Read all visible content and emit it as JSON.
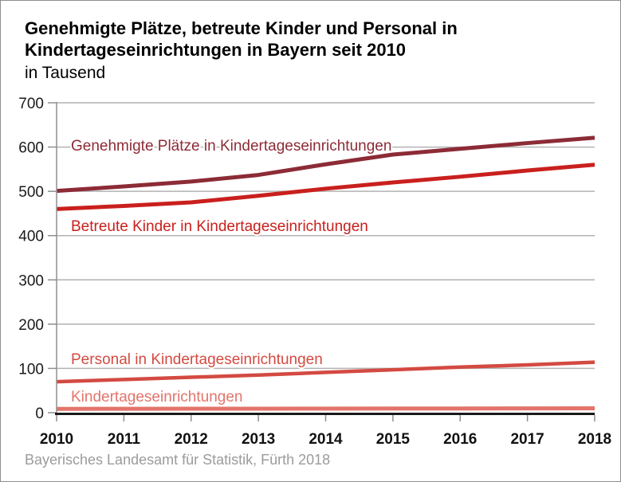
{
  "header": {
    "title_line1": "Genehmigte Plätze, betreute Kinder und Personal in",
    "title_line2": "Kindertageseinrichtungen in Bayern seit 2010",
    "subtitle": "in Tausend"
  },
  "footer": {
    "source": "Bayerisches Landesamt für Statistik, Fürth 2018"
  },
  "chart_data": {
    "type": "line",
    "title": "Genehmigte Plätze, betreute Kinder und Personal in Kindertageseinrichtungen in Bayern seit 2010",
    "subtitle": "in Tausend",
    "xlabel": "",
    "ylabel": "in Tausend",
    "x": [
      2010,
      2011,
      2012,
      2013,
      2014,
      2015,
      2016,
      2017,
      2018
    ],
    "ylim": [
      0,
      700
    ],
    "yticks": [
      0,
      100,
      200,
      300,
      400,
      500,
      600,
      700
    ],
    "grid": true,
    "legend_position": "inline-labels",
    "grid_color": "#b2b2b2",
    "x_axis_color": "#1a1a1a",
    "y_axis_color": "#8f8f8f",
    "series": [
      {
        "key": "genehmigte-plaetze",
        "name": "Genehmigte Plätze in Kindertageseinrichtungen",
        "color": "#8C2B36",
        "values": [
          501,
          511,
          522,
          537,
          561,
          583,
          596,
          609,
          621
        ]
      },
      {
        "key": "betreute-kinder",
        "name": "Betreute Kinder in Kindertageseinrichtungen",
        "color": "#C9201D",
        "values": [
          460,
          467,
          475,
          490,
          506,
          520,
          533,
          547,
          560
        ]
      },
      {
        "key": "personal",
        "name": "Personal in Kindertageseinrichtungen",
        "color": "#D34A41",
        "values": [
          70,
          75,
          80,
          85,
          91,
          97,
          103,
          108,
          114
        ]
      },
      {
        "key": "einrichtungen",
        "name": "Kindertageseinrichtungen",
        "color": "#E3746B",
        "values": [
          8.6,
          8.8,
          8.9,
          9.1,
          9.2,
          9.4,
          9.5,
          9.7,
          9.9
        ]
      }
    ]
  }
}
